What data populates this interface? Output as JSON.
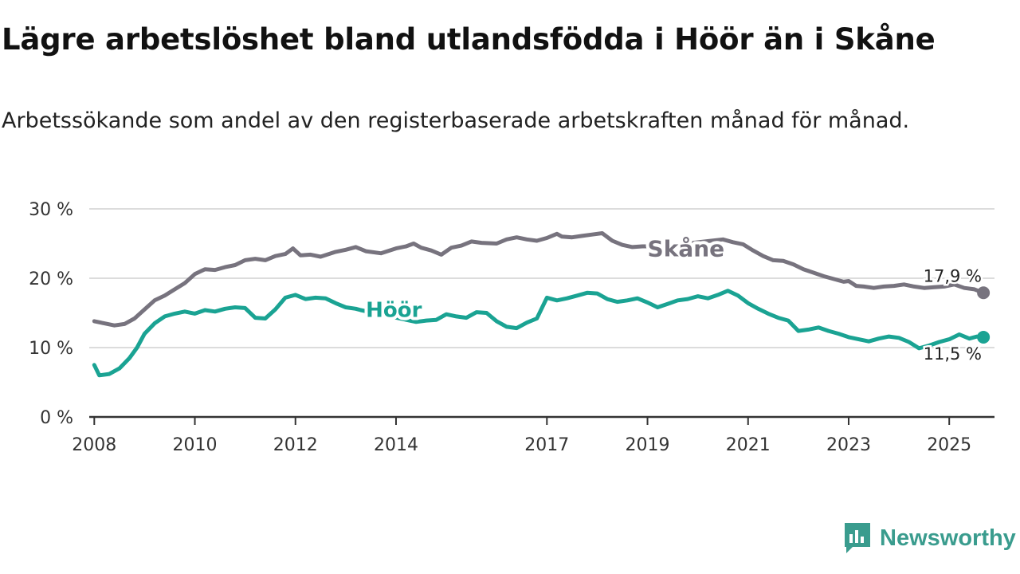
{
  "title": "Lägre arbetslöshet bland utlandsfödda i Höör än i Skåne",
  "subtitle": "Arbetssökande som andel av den registerbaserade arbetskraften månad för månad.",
  "brand": {
    "name": "Newsworthy"
  },
  "colors": {
    "skane": "#77737e",
    "hoor": "#1aa393",
    "grid": "#dcdcdc",
    "axis": "#333333",
    "brand": "#3a9c8e"
  },
  "chart_data": {
    "type": "line",
    "title": "Lägre arbetslöshet bland utlandsfödda i Höör än i Skåne",
    "xlabel": "",
    "ylabel": "",
    "xlim": [
      2007.9,
      2025.9
    ],
    "ylim": [
      0,
      30
    ],
    "y_ticks": [
      0,
      10,
      20,
      30
    ],
    "y_tick_labels": [
      "0 %",
      "10 %",
      "20 %",
      "30 %"
    ],
    "x_ticks": [
      2008,
      2010,
      2012,
      2014,
      2017,
      2019,
      2021,
      2023,
      2025
    ],
    "x_tick_labels": [
      "2008",
      "2010",
      "2012",
      "2014",
      "2017",
      "2019",
      "2021",
      "2023",
      "2025"
    ],
    "grid": true,
    "series": [
      {
        "name": "Skåne",
        "label": "Skåne",
        "color": "#77737e",
        "end_label": "17,9 %",
        "points": [
          [
            2008.0,
            13.8
          ],
          [
            2008.2,
            13.5
          ],
          [
            2008.4,
            13.2
          ],
          [
            2008.6,
            13.4
          ],
          [
            2008.8,
            14.2
          ],
          [
            2009.0,
            15.5
          ],
          [
            2009.2,
            16.8
          ],
          [
            2009.4,
            17.5
          ],
          [
            2009.6,
            18.4
          ],
          [
            2009.8,
            19.3
          ],
          [
            2010.0,
            20.6
          ],
          [
            2010.2,
            21.3
          ],
          [
            2010.4,
            21.2
          ],
          [
            2010.6,
            21.6
          ],
          [
            2010.8,
            21.9
          ],
          [
            2011.0,
            22.6
          ],
          [
            2011.2,
            22.8
          ],
          [
            2011.4,
            22.6
          ],
          [
            2011.6,
            23.2
          ],
          [
            2011.8,
            23.5
          ],
          [
            2011.95,
            24.3
          ],
          [
            2012.1,
            23.3
          ],
          [
            2012.3,
            23.4
          ],
          [
            2012.5,
            23.1
          ],
          [
            2012.8,
            23.8
          ],
          [
            2013.0,
            24.1
          ],
          [
            2013.2,
            24.5
          ],
          [
            2013.4,
            23.9
          ],
          [
            2013.7,
            23.6
          ],
          [
            2014.0,
            24.3
          ],
          [
            2014.2,
            24.6
          ],
          [
            2014.35,
            25.0
          ],
          [
            2014.5,
            24.4
          ],
          [
            2014.7,
            24.0
          ],
          [
            2014.9,
            23.4
          ],
          [
            2015.1,
            24.4
          ],
          [
            2015.3,
            24.7
          ],
          [
            2015.5,
            25.3
          ],
          [
            2015.7,
            25.1
          ],
          [
            2016.0,
            25.0
          ],
          [
            2016.2,
            25.6
          ],
          [
            2016.4,
            25.9
          ],
          [
            2016.6,
            25.6
          ],
          [
            2016.8,
            25.4
          ],
          [
            2017.0,
            25.8
          ],
          [
            2017.2,
            26.4
          ],
          [
            2017.3,
            26.0
          ],
          [
            2017.5,
            25.9
          ],
          [
            2017.7,
            26.1
          ],
          [
            2017.9,
            26.3
          ],
          [
            2018.1,
            26.5
          ],
          [
            2018.3,
            25.4
          ],
          [
            2018.5,
            24.8
          ],
          [
            2018.7,
            24.5
          ],
          [
            2018.9,
            24.6
          ],
          [
            2019.1,
            24.6
          ],
          [
            2019.3,
            24.6
          ],
          [
            2020.5,
            25.6
          ],
          [
            2020.7,
            25.2
          ],
          [
            2020.9,
            24.9
          ],
          [
            2021.1,
            24.0
          ],
          [
            2021.3,
            23.2
          ],
          [
            2021.5,
            22.6
          ],
          [
            2021.7,
            22.5
          ],
          [
            2021.9,
            22.0
          ],
          [
            2022.1,
            21.3
          ],
          [
            2022.3,
            20.8
          ],
          [
            2022.5,
            20.3
          ],
          [
            2022.7,
            19.9
          ],
          [
            2022.9,
            19.5
          ],
          [
            2023.0,
            19.6
          ],
          [
            2023.15,
            18.9
          ],
          [
            2023.3,
            18.8
          ],
          [
            2023.5,
            18.6
          ],
          [
            2023.7,
            18.8
          ],
          [
            2023.9,
            18.9
          ],
          [
            2024.1,
            19.1
          ],
          [
            2024.3,
            18.8
          ],
          [
            2024.5,
            18.6
          ],
          [
            2024.7,
            18.7
          ],
          [
            2024.9,
            18.8
          ],
          [
            2025.1,
            19.1
          ],
          [
            2025.3,
            18.6
          ],
          [
            2025.5,
            18.4
          ],
          [
            2025.68,
            17.9
          ]
        ]
      },
      {
        "name": "Höör",
        "label": "Höör",
        "color": "#1aa393",
        "end_label": "11,5 %",
        "points": [
          [
            2008.0,
            7.5
          ],
          [
            2008.1,
            6.0
          ],
          [
            2008.3,
            6.2
          ],
          [
            2008.5,
            7.0
          ],
          [
            2008.7,
            8.5
          ],
          [
            2008.85,
            10.0
          ],
          [
            2009.0,
            12.0
          ],
          [
            2009.2,
            13.5
          ],
          [
            2009.4,
            14.5
          ],
          [
            2009.6,
            14.9
          ],
          [
            2009.8,
            15.2
          ],
          [
            2010.0,
            14.9
          ],
          [
            2010.2,
            15.4
          ],
          [
            2010.4,
            15.2
          ],
          [
            2010.6,
            15.6
          ],
          [
            2010.8,
            15.8
          ],
          [
            2011.0,
            15.7
          ],
          [
            2011.2,
            14.3
          ],
          [
            2011.4,
            14.2
          ],
          [
            2011.6,
            15.5
          ],
          [
            2011.8,
            17.2
          ],
          [
            2012.0,
            17.6
          ],
          [
            2012.2,
            17.0
          ],
          [
            2012.4,
            17.2
          ],
          [
            2012.6,
            17.1
          ],
          [
            2012.8,
            16.4
          ],
          [
            2013.0,
            15.8
          ],
          [
            2013.2,
            15.6
          ],
          [
            2013.3,
            15.4
          ],
          [
            2014.4,
            13.7
          ],
          [
            2014.6,
            13.9
          ],
          [
            2014.8,
            14.0
          ],
          [
            2015.0,
            14.8
          ],
          [
            2015.2,
            14.5
          ],
          [
            2015.4,
            14.3
          ],
          [
            2015.6,
            15.1
          ],
          [
            2015.8,
            15.0
          ],
          [
            2016.0,
            13.8
          ],
          [
            2016.2,
            13.0
          ],
          [
            2016.4,
            12.8
          ],
          [
            2016.6,
            13.6
          ],
          [
            2016.8,
            14.2
          ],
          [
            2017.0,
            17.2
          ],
          [
            2017.2,
            16.8
          ],
          [
            2017.4,
            17.1
          ],
          [
            2017.6,
            17.5
          ],
          [
            2017.8,
            17.9
          ],
          [
            2018.0,
            17.8
          ],
          [
            2018.2,
            17.0
          ],
          [
            2018.4,
            16.6
          ],
          [
            2018.6,
            16.8
          ],
          [
            2018.8,
            17.1
          ],
          [
            2019.0,
            16.5
          ],
          [
            2019.2,
            15.8
          ],
          [
            2019.4,
            16.3
          ],
          [
            2019.6,
            16.8
          ],
          [
            2019.8,
            17.0
          ],
          [
            2020.0,
            17.4
          ],
          [
            2020.2,
            17.1
          ],
          [
            2020.4,
            17.6
          ],
          [
            2020.6,
            18.2
          ],
          [
            2020.8,
            17.5
          ],
          [
            2021.0,
            16.4
          ],
          [
            2021.2,
            15.6
          ],
          [
            2021.4,
            14.9
          ],
          [
            2021.6,
            14.3
          ],
          [
            2021.8,
            13.9
          ],
          [
            2022.0,
            12.4
          ],
          [
            2022.2,
            12.6
          ],
          [
            2022.4,
            12.9
          ],
          [
            2022.6,
            12.4
          ],
          [
            2022.8,
            12.0
          ],
          [
            2023.0,
            11.5
          ],
          [
            2023.2,
            11.2
          ],
          [
            2023.4,
            10.9
          ],
          [
            2023.6,
            11.3
          ],
          [
            2023.8,
            11.6
          ],
          [
            2024.0,
            11.4
          ],
          [
            2024.2,
            10.8
          ],
          [
            2024.4,
            9.9
          ],
          [
            2024.6,
            10.3
          ],
          [
            2024.8,
            10.8
          ],
          [
            2025.0,
            11.2
          ],
          [
            2025.2,
            11.9
          ],
          [
            2025.4,
            11.3
          ],
          [
            2025.55,
            11.6
          ],
          [
            2025.68,
            11.5
          ]
        ]
      }
    ]
  }
}
